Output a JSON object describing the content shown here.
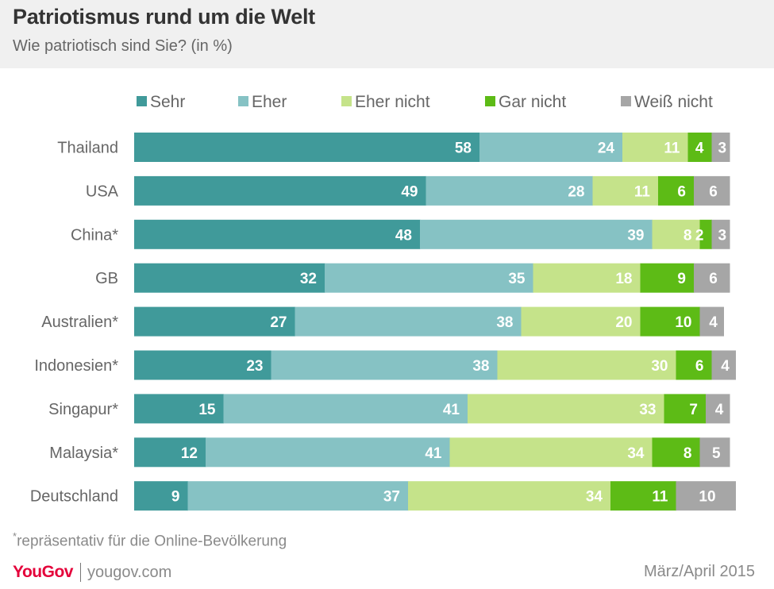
{
  "title": "Patriotismus rund um die Welt",
  "subtitle": "Wie patriotisch sind Sie? (in %)",
  "footnote": {
    "marker": "*",
    "text": "repräsentativ für die Online-Bevölkerung"
  },
  "footer": {
    "brand": "YouGov",
    "site": "yougov.com",
    "date": "März/April 2015"
  },
  "chart_data": {
    "type": "bar",
    "orientation": "horizontal",
    "stacked": true,
    "categories": [
      "Thailand",
      "USA",
      "China*",
      "GB",
      "Australien*",
      "Indonesien*",
      "Singapur*",
      "Malaysia*",
      "Deutschland"
    ],
    "series": [
      {
        "name": "Sehr",
        "color": "#409a9a",
        "values": [
          58,
          49,
          48,
          32,
          27,
          23,
          15,
          12,
          9
        ]
      },
      {
        "name": "Eher",
        "color": "#86c2c4",
        "values": [
          24,
          28,
          39,
          35,
          38,
          38,
          41,
          41,
          37
        ]
      },
      {
        "name": "Eher nicht",
        "color": "#c5e38a",
        "values": [
          11,
          11,
          8,
          18,
          20,
          30,
          33,
          34,
          34
        ]
      },
      {
        "name": "Gar nicht",
        "color": "#5dbb16",
        "values": [
          4,
          6,
          2,
          9,
          10,
          6,
          7,
          8,
          11
        ]
      },
      {
        "name": "Weiß nicht",
        "color": "#a6a6a6",
        "values": [
          3,
          6,
          3,
          6,
          4,
          4,
          4,
          5,
          10
        ]
      }
    ],
    "legend_position": "top",
    "xlim": [
      0,
      100
    ]
  }
}
